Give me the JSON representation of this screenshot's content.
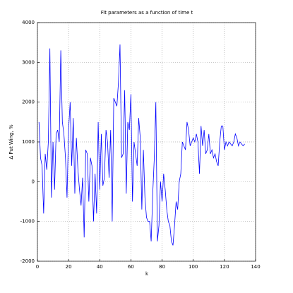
{
  "chart_data": {
    "type": "line",
    "title": "Fit parameters as a function of time t",
    "x_label": "k",
    "y_label": "Δ Put Wing, %",
    "x": [
      1,
      2,
      3,
      4,
      5,
      6,
      7,
      8,
      9,
      10,
      11,
      12,
      13,
      14,
      15,
      16,
      17,
      18,
      19,
      20,
      21,
      22,
      23,
      24,
      25,
      26,
      27,
      28,
      29,
      30,
      31,
      32,
      33,
      34,
      35,
      36,
      37,
      38,
      39,
      40,
      41,
      42,
      43,
      44,
      45,
      46,
      47,
      48,
      49,
      50,
      51,
      52,
      53,
      54,
      55,
      56,
      57,
      58,
      59,
      60,
      61,
      62,
      63,
      64,
      65,
      66,
      67,
      68,
      69,
      70,
      71,
      72,
      73,
      74,
      75,
      76,
      77,
      78,
      79,
      80,
      81,
      82,
      83,
      84,
      85,
      86,
      87,
      88,
      89,
      90,
      91,
      92,
      93,
      94,
      95,
      96,
      97,
      98,
      99,
      100,
      101,
      102,
      103,
      104,
      105,
      106,
      107,
      108,
      109,
      110,
      111,
      112,
      113,
      114,
      115,
      116,
      117,
      118,
      119,
      120,
      121,
      122,
      123,
      124,
      125,
      126,
      127,
      128,
      129,
      130,
      131,
      132,
      133
    ],
    "series": [
      {
        "name": "Δ Put Wing",
        "color": "#0000ff",
        "values": [
          1500,
          600,
          400,
          -800,
          700,
          300,
          1000,
          3350,
          -400,
          1000,
          -200,
          1200,
          1300,
          1000,
          3300,
          1500,
          1200,
          600,
          -400,
          1300,
          2000,
          400,
          1600,
          -300,
          1100,
          300,
          -200,
          -600,
          100,
          -1400,
          800,
          700,
          -500,
          600,
          400,
          -1000,
          200,
          -800,
          1500,
          -200,
          1200,
          -100,
          100,
          1300,
          1000,
          100,
          1300,
          -1000,
          2100,
          2000,
          1900,
          2500,
          3450,
          600,
          700,
          2300,
          -300,
          1500,
          1300,
          2200,
          -500,
          1000,
          700,
          400,
          1600,
          1100,
          -700,
          800,
          -400,
          -900,
          -1000,
          -1000,
          -1500,
          -300,
          600,
          2000,
          -1500,
          -1100,
          0,
          -500,
          200,
          -200,
          -700,
          -1000,
          -1100,
          -1500,
          -1600,
          -1100,
          -500,
          -700,
          0,
          200,
          1000,
          900,
          800,
          1500,
          1300,
          900,
          1000,
          1100,
          1000,
          1200,
          1000,
          200,
          1400,
          900,
          1300,
          700,
          800,
          1200,
          700,
          800,
          600,
          700,
          500,
          400,
          1000,
          1400,
          1400,
          800,
          1000,
          900,
          1000,
          950,
          900,
          1000,
          1200,
          1100,
          900,
          1000,
          950,
          900,
          950
        ]
      }
    ],
    "xlim": [
      0,
      140
    ],
    "xticks": [
      0,
      20,
      40,
      60,
      80,
      100,
      120,
      140
    ],
    "ylim": [
      -2000,
      4000
    ],
    "yticks": [
      -2000,
      -1000,
      0,
      1000,
      2000,
      3000,
      4000
    ],
    "grid": true
  }
}
